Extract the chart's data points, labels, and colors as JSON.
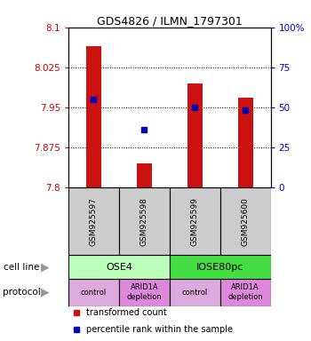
{
  "title": "GDS4826 / ILMN_1797301",
  "samples": [
    "GSM925597",
    "GSM925598",
    "GSM925599",
    "GSM925600"
  ],
  "bar_values": [
    8.065,
    7.845,
    7.995,
    7.968
  ],
  "dot_values": [
    7.965,
    7.908,
    7.95,
    7.945
  ],
  "ymin": 7.8,
  "ymax": 8.1,
  "y_ticks": [
    7.8,
    7.875,
    7.95,
    8.025,
    8.1
  ],
  "y_tick_labels": [
    "7.8",
    "7.875",
    "7.95",
    "8.025",
    "8.1"
  ],
  "right_ticks": [
    0,
    25,
    50,
    75,
    100
  ],
  "right_tick_labels": [
    "0",
    "25",
    "50",
    "75",
    "100%"
  ],
  "bar_color": "#cc1111",
  "dot_color": "#0000bb",
  "cell_line_groups": [
    {
      "label": "OSE4",
      "start": 0,
      "end": 2,
      "color": "#bbffbb"
    },
    {
      "label": "IOSE80pc",
      "start": 2,
      "end": 4,
      "color": "#44dd44"
    }
  ],
  "protocol_groups": [
    {
      "label": "control",
      "start": 0,
      "end": 1,
      "color": "#ddaadd"
    },
    {
      "label": "ARID1A\ndepletion",
      "start": 1,
      "end": 2,
      "color": "#dd88dd"
    },
    {
      "label": "control",
      "start": 2,
      "end": 3,
      "color": "#ddaadd"
    },
    {
      "label": "ARID1A\ndepletion",
      "start": 3,
      "end": 4,
      "color": "#dd88dd"
    }
  ],
  "legend_items": [
    {
      "label": "transformed count",
      "color": "#cc1111"
    },
    {
      "label": "percentile rank within the sample",
      "color": "#0000bb"
    }
  ],
  "sample_box_color": "#cccccc",
  "left_label_color": "#cc0000",
  "right_label_color": "#0000cc",
  "bar_width": 0.3
}
